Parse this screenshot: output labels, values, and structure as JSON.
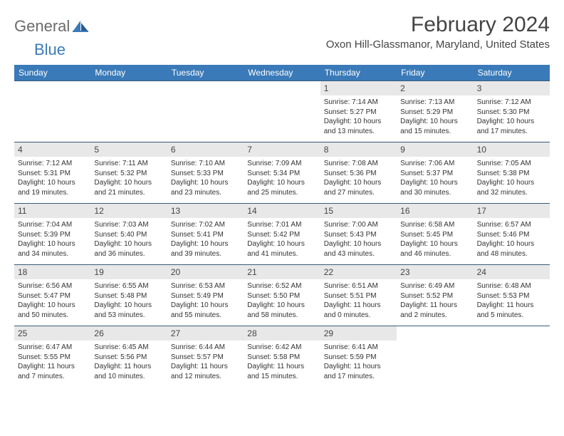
{
  "logo": {
    "general": "General",
    "blue": "Blue"
  },
  "title": "February 2024",
  "location": "Oxon Hill-Glassmanor, Maryland, United States",
  "colors": {
    "header_bg": "#3a7ab8",
    "header_text": "#ffffff",
    "rule": "#3a5a78",
    "day_num_bg": "#e8e8e8",
    "text": "#333333",
    "logo_gray": "#6b6b6b",
    "logo_blue": "#3a7ab8"
  },
  "dayNames": [
    "Sunday",
    "Monday",
    "Tuesday",
    "Wednesday",
    "Thursday",
    "Friday",
    "Saturday"
  ],
  "weeks": [
    [
      null,
      null,
      null,
      null,
      {
        "n": "1",
        "sr": "7:14 AM",
        "ss": "5:27 PM",
        "dl": "10 hours and 13 minutes."
      },
      {
        "n": "2",
        "sr": "7:13 AM",
        "ss": "5:29 PM",
        "dl": "10 hours and 15 minutes."
      },
      {
        "n": "3",
        "sr": "7:12 AM",
        "ss": "5:30 PM",
        "dl": "10 hours and 17 minutes."
      }
    ],
    [
      {
        "n": "4",
        "sr": "7:12 AM",
        "ss": "5:31 PM",
        "dl": "10 hours and 19 minutes."
      },
      {
        "n": "5",
        "sr": "7:11 AM",
        "ss": "5:32 PM",
        "dl": "10 hours and 21 minutes."
      },
      {
        "n": "6",
        "sr": "7:10 AM",
        "ss": "5:33 PM",
        "dl": "10 hours and 23 minutes."
      },
      {
        "n": "7",
        "sr": "7:09 AM",
        "ss": "5:34 PM",
        "dl": "10 hours and 25 minutes."
      },
      {
        "n": "8",
        "sr": "7:08 AM",
        "ss": "5:36 PM",
        "dl": "10 hours and 27 minutes."
      },
      {
        "n": "9",
        "sr": "7:06 AM",
        "ss": "5:37 PM",
        "dl": "10 hours and 30 minutes."
      },
      {
        "n": "10",
        "sr": "7:05 AM",
        "ss": "5:38 PM",
        "dl": "10 hours and 32 minutes."
      }
    ],
    [
      {
        "n": "11",
        "sr": "7:04 AM",
        "ss": "5:39 PM",
        "dl": "10 hours and 34 minutes."
      },
      {
        "n": "12",
        "sr": "7:03 AM",
        "ss": "5:40 PM",
        "dl": "10 hours and 36 minutes."
      },
      {
        "n": "13",
        "sr": "7:02 AM",
        "ss": "5:41 PM",
        "dl": "10 hours and 39 minutes."
      },
      {
        "n": "14",
        "sr": "7:01 AM",
        "ss": "5:42 PM",
        "dl": "10 hours and 41 minutes."
      },
      {
        "n": "15",
        "sr": "7:00 AM",
        "ss": "5:43 PM",
        "dl": "10 hours and 43 minutes."
      },
      {
        "n": "16",
        "sr": "6:58 AM",
        "ss": "5:45 PM",
        "dl": "10 hours and 46 minutes."
      },
      {
        "n": "17",
        "sr": "6:57 AM",
        "ss": "5:46 PM",
        "dl": "10 hours and 48 minutes."
      }
    ],
    [
      {
        "n": "18",
        "sr": "6:56 AM",
        "ss": "5:47 PM",
        "dl": "10 hours and 50 minutes."
      },
      {
        "n": "19",
        "sr": "6:55 AM",
        "ss": "5:48 PM",
        "dl": "10 hours and 53 minutes."
      },
      {
        "n": "20",
        "sr": "6:53 AM",
        "ss": "5:49 PM",
        "dl": "10 hours and 55 minutes."
      },
      {
        "n": "21",
        "sr": "6:52 AM",
        "ss": "5:50 PM",
        "dl": "10 hours and 58 minutes."
      },
      {
        "n": "22",
        "sr": "6:51 AM",
        "ss": "5:51 PM",
        "dl": "11 hours and 0 minutes."
      },
      {
        "n": "23",
        "sr": "6:49 AM",
        "ss": "5:52 PM",
        "dl": "11 hours and 2 minutes."
      },
      {
        "n": "24",
        "sr": "6:48 AM",
        "ss": "5:53 PM",
        "dl": "11 hours and 5 minutes."
      }
    ],
    [
      {
        "n": "25",
        "sr": "6:47 AM",
        "ss": "5:55 PM",
        "dl": "11 hours and 7 minutes."
      },
      {
        "n": "26",
        "sr": "6:45 AM",
        "ss": "5:56 PM",
        "dl": "11 hours and 10 minutes."
      },
      {
        "n": "27",
        "sr": "6:44 AM",
        "ss": "5:57 PM",
        "dl": "11 hours and 12 minutes."
      },
      {
        "n": "28",
        "sr": "6:42 AM",
        "ss": "5:58 PM",
        "dl": "11 hours and 15 minutes."
      },
      {
        "n": "29",
        "sr": "6:41 AM",
        "ss": "5:59 PM",
        "dl": "11 hours and 17 minutes."
      },
      null,
      null
    ]
  ],
  "labels": {
    "sunrise": "Sunrise: ",
    "sunset": "Sunset: ",
    "daylight": "Daylight: "
  }
}
